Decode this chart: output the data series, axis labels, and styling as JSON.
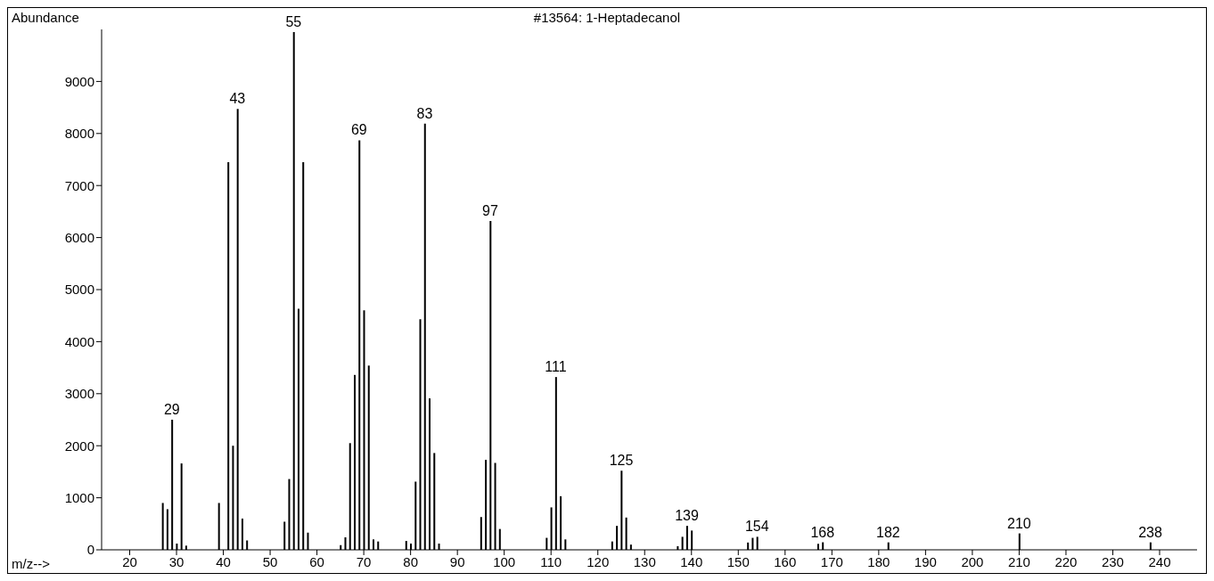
{
  "chart_data": {
    "type": "bar",
    "title": "#13564: 1-Heptadecanol",
    "xlabel": "m/z-->",
    "ylabel": "Abundance",
    "color": "#000000",
    "x": [
      27,
      28,
      29,
      30,
      31,
      32,
      39,
      41,
      42,
      43,
      44,
      45,
      53,
      54,
      55,
      56,
      57,
      58,
      65,
      66,
      67,
      68,
      69,
      70,
      71,
      72,
      73,
      79,
      80,
      81,
      82,
      83,
      84,
      85,
      86,
      95,
      96,
      97,
      98,
      99,
      109,
      110,
      111,
      112,
      113,
      123,
      124,
      125,
      126,
      127,
      137,
      138,
      139,
      140,
      152,
      153,
      154,
      167,
      168,
      182,
      210,
      238
    ],
    "values": [
      900,
      780,
      2500,
      120,
      1660,
      80,
      900,
      7450,
      2000,
      8470,
      600,
      180,
      540,
      1360,
      9950,
      4630,
      7450,
      330,
      90,
      240,
      2050,
      3360,
      7870,
      4600,
      3540,
      200,
      160,
      170,
      120,
      1310,
      4430,
      8190,
      2910,
      1860,
      120,
      630,
      1730,
      6320,
      1670,
      400,
      230,
      815,
      3320,
      1030,
      200,
      160,
      460,
      1520,
      620,
      100,
      70,
      250,
      460,
      370,
      140,
      230,
      250,
      115,
      145,
      143,
      315,
      143
    ],
    "xlim": [
      14,
      248
    ],
    "xticks": [
      20,
      30,
      40,
      50,
      60,
      70,
      80,
      90,
      100,
      110,
      120,
      130,
      140,
      150,
      160,
      170,
      180,
      190,
      200,
      210,
      220,
      230,
      240
    ],
    "ylim": [
      0,
      10000
    ],
    "yticks": [
      0,
      1000,
      2000,
      3000,
      4000,
      5000,
      6000,
      7000,
      8000,
      9000
    ],
    "grid": false,
    "annotations": [
      {
        "text": "29",
        "x": 29,
        "y": 2500
      },
      {
        "text": "43",
        "x": 43,
        "y": 8470
      },
      {
        "text": "55",
        "x": 55,
        "y": 9950
      },
      {
        "text": "69",
        "x": 69,
        "y": 7870
      },
      {
        "text": "83",
        "x": 83,
        "y": 8190
      },
      {
        "text": "97",
        "x": 97,
        "y": 6320
      },
      {
        "text": "111",
        "x": 111,
        "y": 3320
      },
      {
        "text": "125",
        "x": 125,
        "y": 1520
      },
      {
        "text": "139",
        "x": 139,
        "y": 460
      },
      {
        "text": "154",
        "x": 154,
        "y": 250
      },
      {
        "text": "168",
        "x": 168,
        "y": 145
      },
      {
        "text": "182",
        "x": 182,
        "y": 143
      },
      {
        "text": "210",
        "x": 210,
        "y": 315
      },
      {
        "text": "238",
        "x": 238,
        "y": 143
      }
    ]
  }
}
